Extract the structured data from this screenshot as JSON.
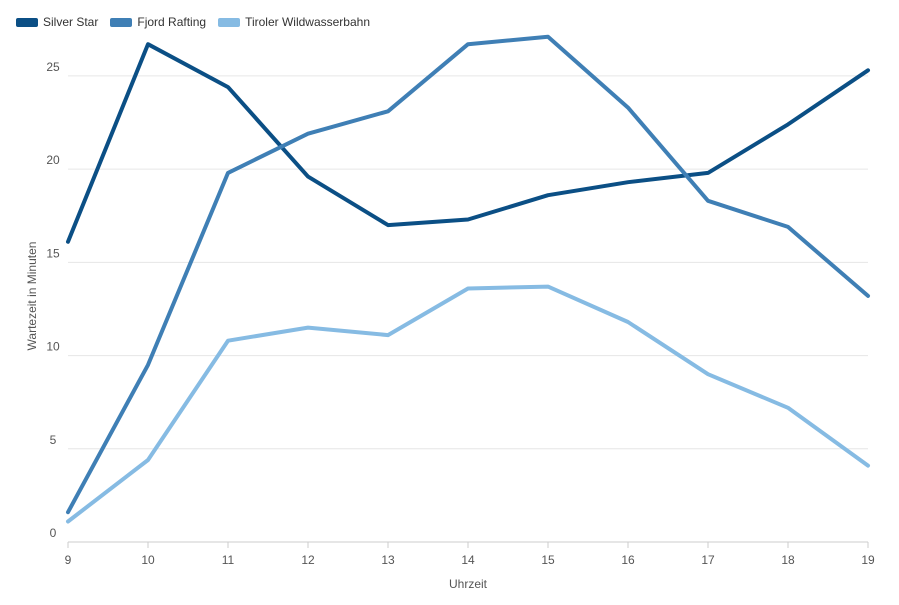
{
  "chart_data": {
    "type": "line",
    "title": "",
    "xlabel": "Uhrzeit",
    "ylabel": "Wartezeit in Minuten",
    "x": [
      9,
      10,
      11,
      12,
      13,
      14,
      15,
      16,
      17,
      18,
      19
    ],
    "xlim": [
      9,
      19
    ],
    "ylim": [
      0,
      28
    ],
    "yticks": [
      0,
      5,
      10,
      15,
      20,
      25
    ],
    "grid": "horizontal",
    "legend": "top-left",
    "series": [
      {
        "name": "Silver Star",
        "color": "#0b4f85",
        "values": [
          16.1,
          26.7,
          24.4,
          19.6,
          17.0,
          17.3,
          18.6,
          19.3,
          19.8,
          22.4,
          25.3
        ]
      },
      {
        "name": "Fjord Rafting",
        "color": "#3f7fb5",
        "values": [
          1.6,
          9.5,
          19.8,
          21.9,
          23.1,
          26.7,
          27.1,
          23.3,
          18.3,
          16.9,
          13.2
        ]
      },
      {
        "name": "Tiroler Wildwasserbahn",
        "color": "#86bbe3",
        "values": [
          1.1,
          4.4,
          10.8,
          11.5,
          11.1,
          13.6,
          13.7,
          11.8,
          9.0,
          7.2,
          4.1
        ]
      }
    ]
  }
}
